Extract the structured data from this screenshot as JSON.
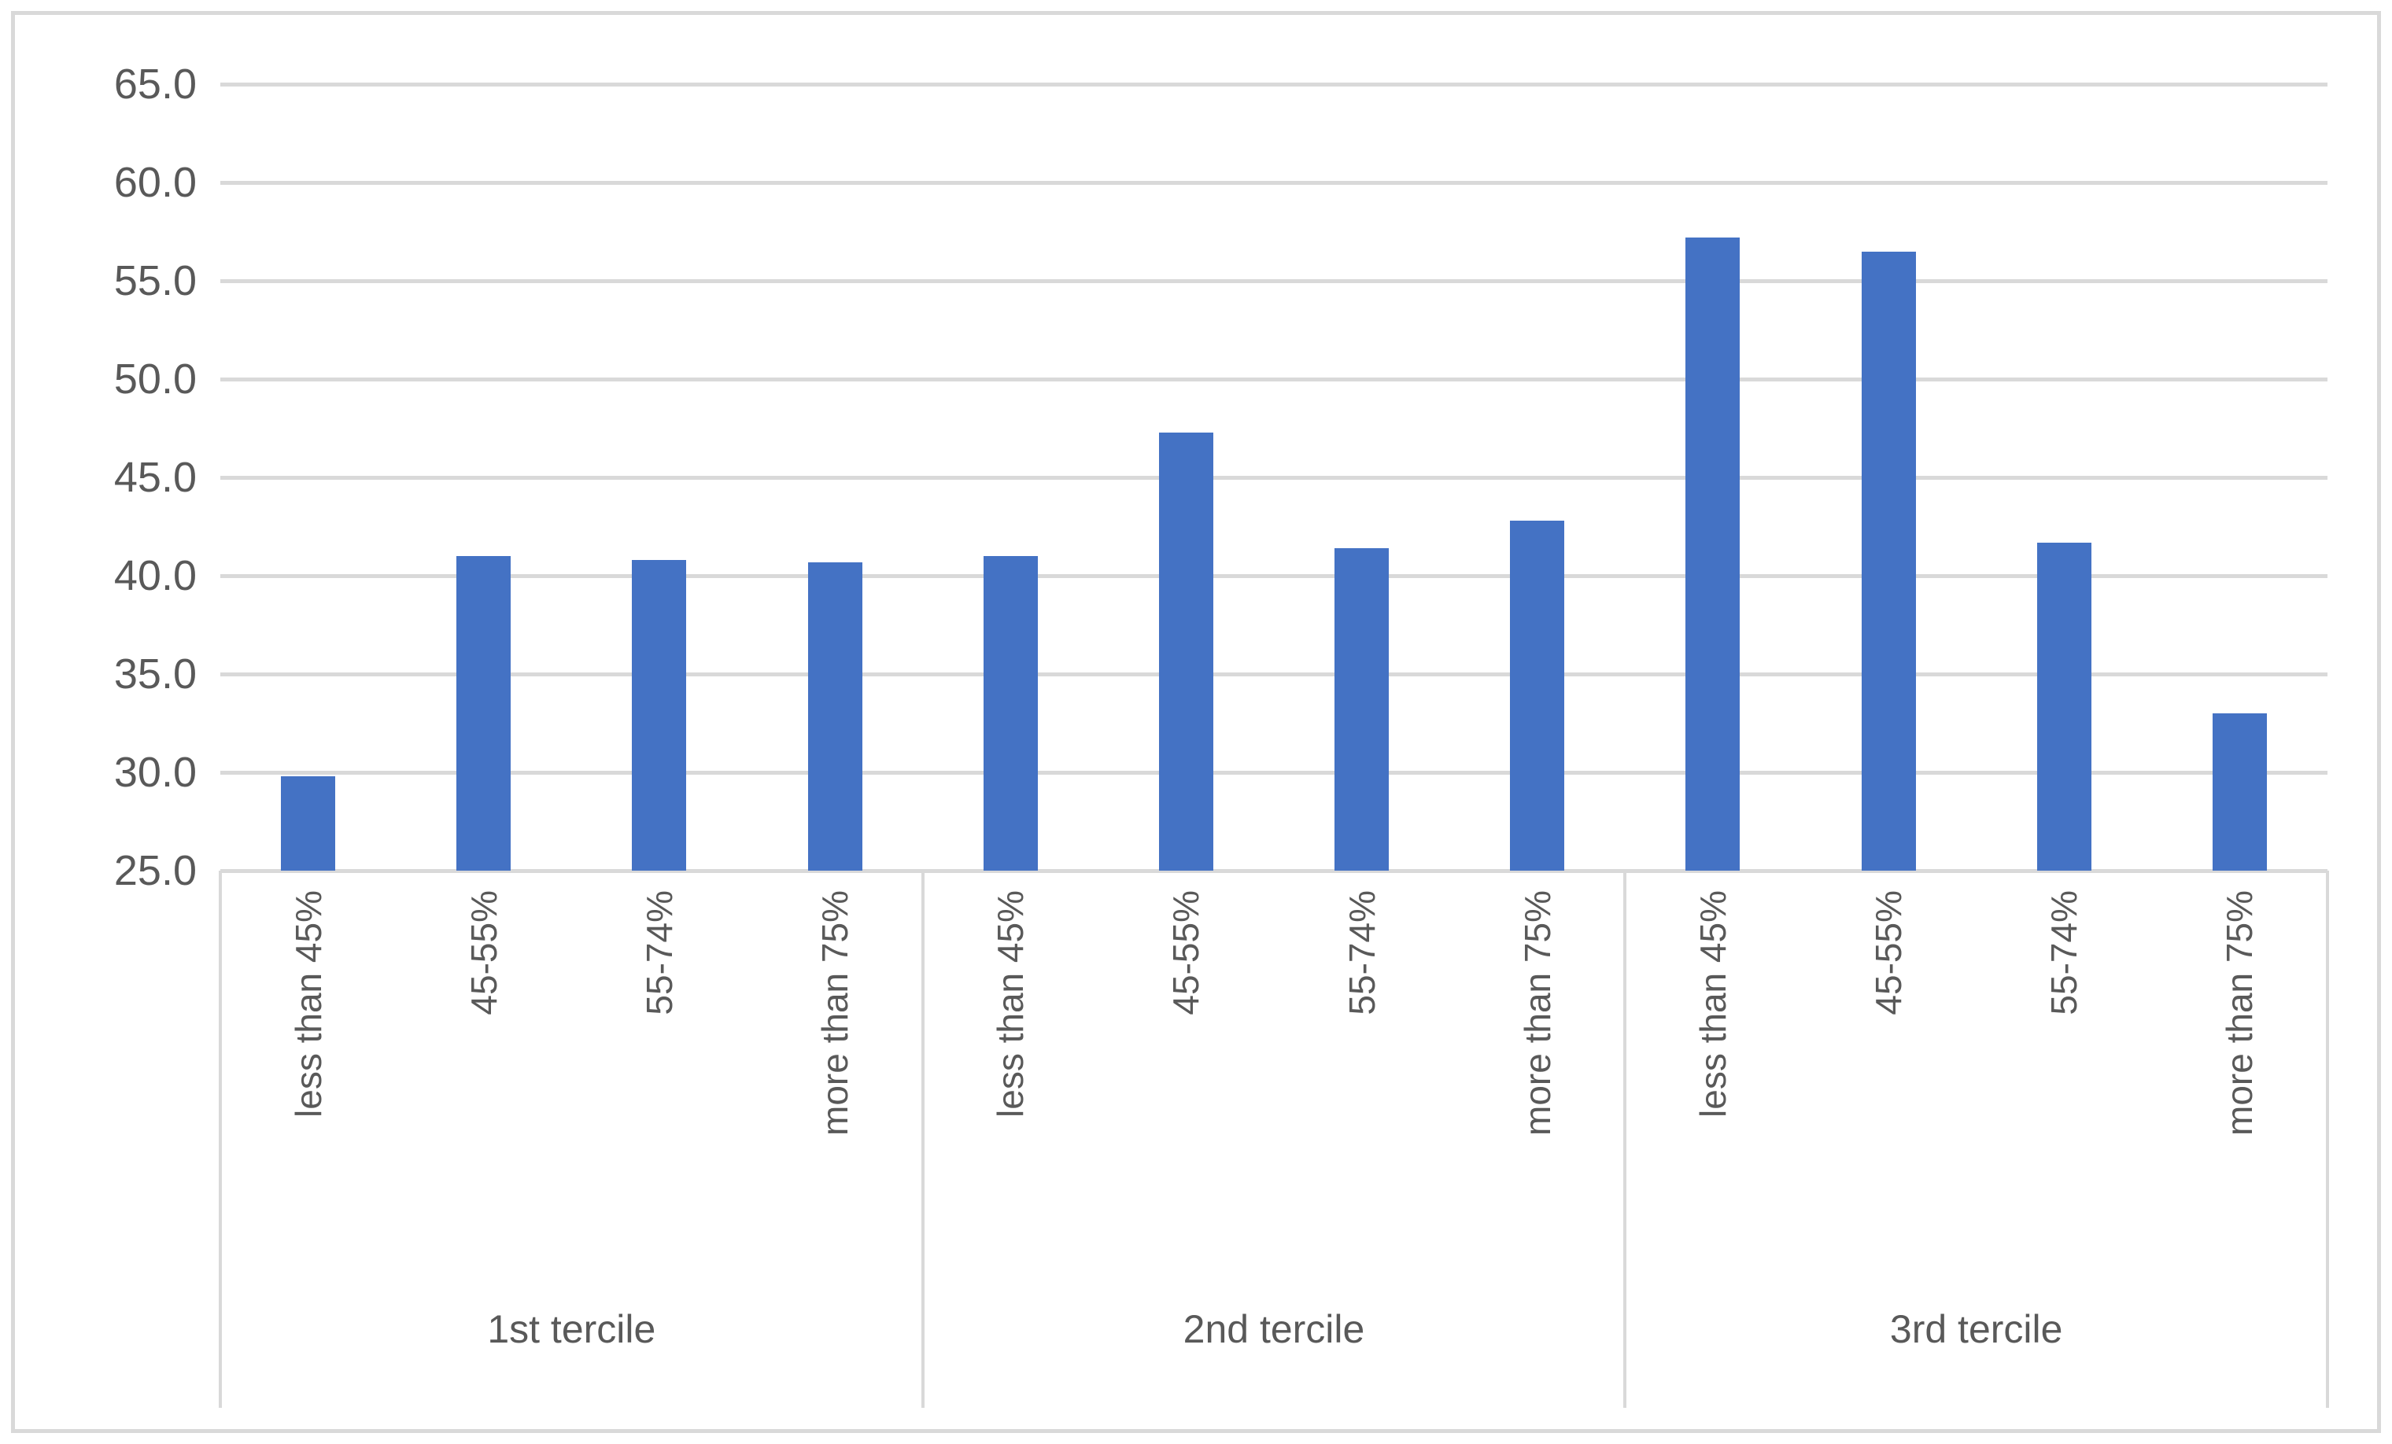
{
  "chart_data": {
    "type": "bar",
    "title": "",
    "xlabel": "",
    "ylabel": "",
    "legend": "none",
    "grid": true,
    "y_axis": {
      "min": 25.0,
      "max": 65.0,
      "step": 5.0,
      "tick_labels": [
        "65.0",
        "60.0",
        "55.0",
        "50.0",
        "45.0",
        "40.0",
        "35.0",
        "30.0",
        "25.0"
      ]
    },
    "categories_per_group": [
      "less than 45%",
      "45-55%",
      "55-74%",
      "more than 75%"
    ],
    "groups": [
      {
        "label": "1st tercile",
        "categories": [
          "less than 45%",
          "45-55%",
          "55-74%",
          "more than 75%"
        ],
        "values": [
          29.8,
          41.0,
          40.8,
          40.7
        ]
      },
      {
        "label": "2nd tercile",
        "categories": [
          "less than 45%",
          "45-55%",
          "55-74%",
          "more than 75%"
        ],
        "values": [
          41.0,
          47.3,
          41.4,
          42.8
        ]
      },
      {
        "label": "3rd tercile",
        "categories": [
          "less than 45%",
          "45-55%",
          "55-74%",
          "more than 75%"
        ],
        "values": [
          57.2,
          56.5,
          41.7,
          33.0
        ]
      }
    ],
    "colors": {
      "bar": "#4472C4",
      "gridline": "#d9d9d9",
      "axis_line": "#d9d9d9",
      "divider": "#d9d9d9",
      "text": "#595959",
      "background": "#ffffff"
    }
  }
}
